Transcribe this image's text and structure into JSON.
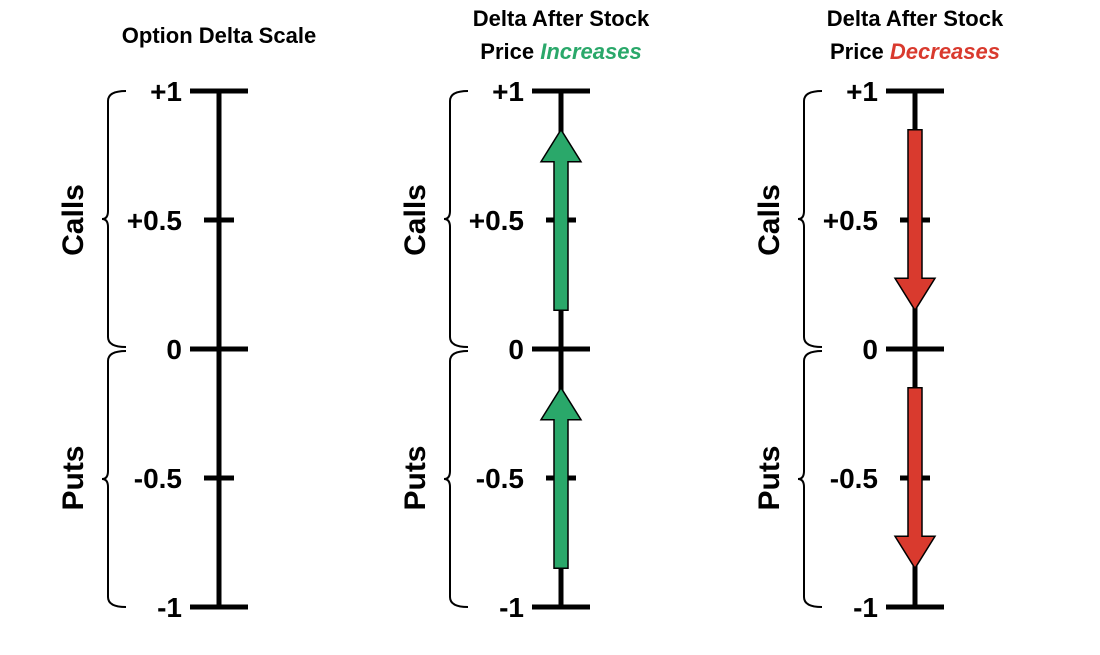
{
  "colors": {
    "line": "#000000",
    "increase": "#2aa86a",
    "decrease": "#d93a2e"
  },
  "panels": [
    {
      "title_line1": "Option Delta Scale",
      "title_line2": "",
      "title_line2_prefix": "",
      "title_line2_emphasis": "",
      "arrows": []
    },
    {
      "title_line1": "Delta After Stock",
      "title_line2": "",
      "title_line2_prefix": "Price ",
      "title_line2_emphasis": "Increases",
      "emphasis_color": "increase",
      "arrows": [
        {
          "from": 0.15,
          "to": 0.85,
          "direction": "up",
          "color": "increase"
        },
        {
          "from": -0.85,
          "to": -0.15,
          "direction": "up",
          "color": "increase"
        }
      ]
    },
    {
      "title_line1": "Delta After Stock",
      "title_line2": "",
      "title_line2_prefix": "Price ",
      "title_line2_emphasis": "Decreases",
      "emphasis_color": "decrease",
      "arrows": [
        {
          "from": 0.85,
          "to": 0.15,
          "direction": "down",
          "color": "decrease"
        },
        {
          "from": -0.15,
          "to": -0.85,
          "direction": "down",
          "color": "decrease"
        }
      ]
    }
  ],
  "ticks": [
    {
      "value": 1,
      "label": "+1"
    },
    {
      "value": 0.5,
      "label": "+0.5"
    },
    {
      "value": 0,
      "label": "0"
    },
    {
      "value": -0.5,
      "label": "-0.5"
    },
    {
      "value": -1,
      "label": "-1"
    }
  ],
  "groups": {
    "calls": "Calls",
    "puts": "Puts"
  }
}
